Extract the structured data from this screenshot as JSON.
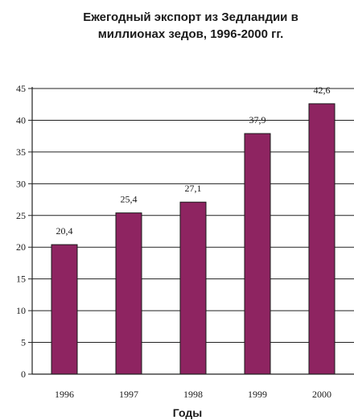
{
  "chart_data": {
    "type": "bar",
    "title_lines": [
      "Ежегодный экспорт из Зедландии в",
      "миллионах зедов, 1996-2000 гг."
    ],
    "categories": [
      "1996",
      "1997",
      "1998",
      "1999",
      "2000"
    ],
    "values": [
      20.4,
      25.4,
      27.1,
      37.9,
      42.6
    ],
    "data_labels": [
      "20,4",
      "25,4",
      "27,1",
      "37,9",
      "42,6"
    ],
    "xlabel": "Годы",
    "ylabel": "",
    "ylim": [
      0,
      45
    ],
    "yticks": [
      0,
      5,
      10,
      15,
      20,
      25,
      30,
      35,
      40,
      45
    ],
    "grid": true,
    "bar_color": "#8e2461"
  }
}
